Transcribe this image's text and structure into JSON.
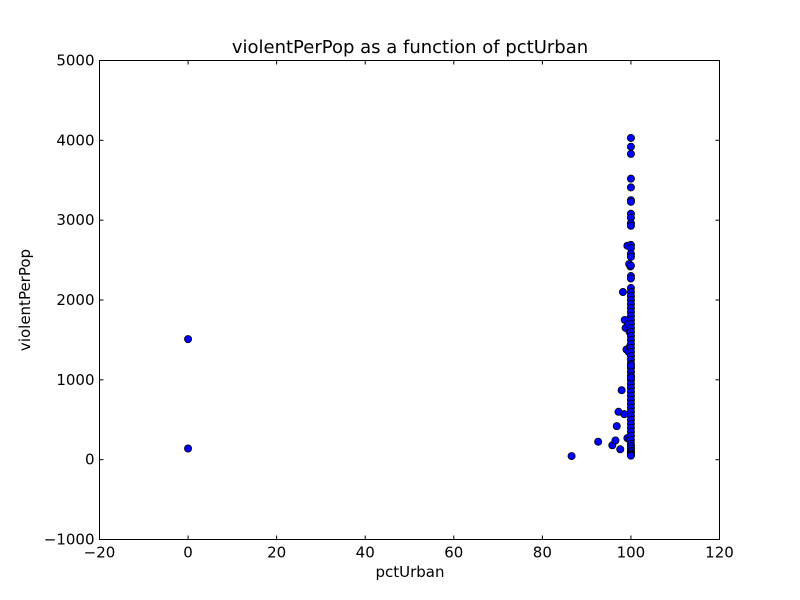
{
  "chart_data": {
    "type": "scatter",
    "title": "violentPerPop as a function of pctUrban",
    "xlabel": "pctUrban",
    "ylabel": "violentPerPop",
    "xlim": [
      -20,
      120
    ],
    "ylim": [
      -1000,
      5000
    ],
    "xticks": [
      -20,
      0,
      20,
      40,
      60,
      80,
      100,
      120
    ],
    "yticks": [
      -1000,
      0,
      1000,
      2000,
      3000,
      4000,
      5000
    ],
    "xtick_labels": [
      "−20",
      "0",
      "20",
      "40",
      "60",
      "80",
      "100",
      "120"
    ],
    "ytick_labels": [
      "−1000",
      "0",
      "1000",
      "2000",
      "3000",
      "4000",
      "5000"
    ],
    "grid": false,
    "legend": "none",
    "marker_color": "#0000ff",
    "marker_edge_color": "#000000",
    "series": [
      {
        "x": [
          0,
          0,
          86.6,
          92.6,
          95.8,
          96.5,
          96.8,
          97.2,
          97.6,
          97.9,
          98.2,
          98.5,
          98.6,
          98.8,
          99.0,
          99.2,
          99.2,
          99.4,
          99.5,
          99.6,
          99.7,
          99.7,
          99.8,
          99.9,
          100,
          100,
          100,
          100,
          100,
          100,
          100,
          100,
          100,
          100,
          100,
          100,
          100,
          100,
          100,
          100,
          100,
          100,
          100,
          100,
          100,
          100,
          100,
          100,
          100,
          100,
          100,
          100,
          100,
          100,
          100,
          100,
          100,
          100,
          100,
          100,
          100,
          100,
          100,
          100,
          100,
          100,
          100,
          100,
          100,
          100,
          100,
          100,
          100,
          100,
          100,
          100,
          100,
          100,
          100,
          100,
          100,
          100
        ],
        "y": [
          1510,
          140,
          45,
          225,
          180,
          240,
          420,
          600,
          130,
          870,
          2100,
          570,
          1750,
          1650,
          1380,
          270,
          2680,
          1700,
          1350,
          2450,
          1600,
          250,
          1420,
          2420,
          4030,
          3920,
          3830,
          3520,
          3410,
          3250,
          3230,
          3080,
          3030,
          2960,
          2930,
          2690,
          2650,
          2580,
          2540,
          2430,
          2300,
          2270,
          2150,
          2100,
          2050,
          2000,
          1950,
          1900,
          1850,
          1800,
          1750,
          1700,
          1650,
          1600,
          1550,
          1500,
          1450,
          1400,
          1350,
          1300,
          1250,
          1200,
          1150,
          1100,
          1050,
          1000,
          950,
          900,
          850,
          800,
          750,
          700,
          650,
          600,
          550,
          500,
          450,
          400,
          350,
          300,
          250,
          200
        ]
      },
      {
        "x": [
          100,
          100,
          100,
          100,
          100,
          100,
          100,
          100,
          100
        ],
        "y": [
          170,
          140,
          110,
          90,
          70,
          60,
          50,
          1180,
          1030
        ]
      }
    ]
  }
}
